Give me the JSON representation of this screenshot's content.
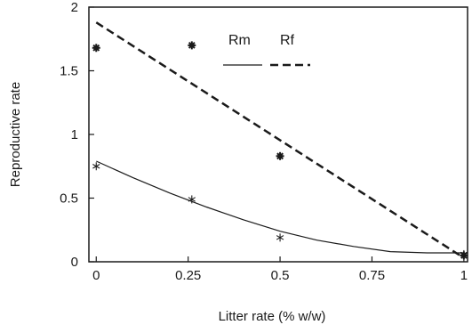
{
  "chart_data": {
    "type": "scatter",
    "xlabel": "Litter rate (% w/w)",
    "ylabel": "Reproductive rate",
    "xlim": [
      -0.02,
      1.01
    ],
    "ylim": [
      0,
      2
    ],
    "x_ticks": [
      0,
      0.25,
      0.5,
      0.75,
      1
    ],
    "x_tick_labels": [
      "0",
      "0.25",
      "0.5",
      "0.75",
      "1"
    ],
    "y_ticks": [
      0,
      0.5,
      1,
      1.5,
      2
    ],
    "y_tick_labels": [
      "0",
      "0.5",
      "1",
      "1.5",
      "2"
    ],
    "grid": false,
    "legend_position": "top-right",
    "series": [
      {
        "name": "Rm",
        "marker": "asterisk",
        "line_style": "solid",
        "points": [
          {
            "x": 0,
            "y": 0.75
          },
          {
            "x": 0.26,
            "y": 0.49
          },
          {
            "x": 0.5,
            "y": 0.19
          },
          {
            "x": 1,
            "y": 0.06
          }
        ],
        "fit": [
          {
            "x": 0,
            "y": 0.79
          },
          {
            "x": 0.1,
            "y": 0.66
          },
          {
            "x": 0.2,
            "y": 0.54
          },
          {
            "x": 0.3,
            "y": 0.43
          },
          {
            "x": 0.4,
            "y": 0.33
          },
          {
            "x": 0.5,
            "y": 0.24
          },
          {
            "x": 0.6,
            "y": 0.17
          },
          {
            "x": 0.7,
            "y": 0.12
          },
          {
            "x": 0.8,
            "y": 0.08
          },
          {
            "x": 0.9,
            "y": 0.07
          },
          {
            "x": 1,
            "y": 0.07
          }
        ]
      },
      {
        "name": "Rf",
        "marker": "filled-asterisk",
        "line_style": "dashed",
        "points": [
          {
            "x": 0,
            "y": 1.68
          },
          {
            "x": 0.26,
            "y": 1.7
          },
          {
            "x": 0.5,
            "y": 0.83
          },
          {
            "x": 1,
            "y": 0.05
          }
        ],
        "fit": [
          {
            "x": 0,
            "y": 1.88
          },
          {
            "x": 1,
            "y": 0.03
          }
        ]
      }
    ]
  }
}
